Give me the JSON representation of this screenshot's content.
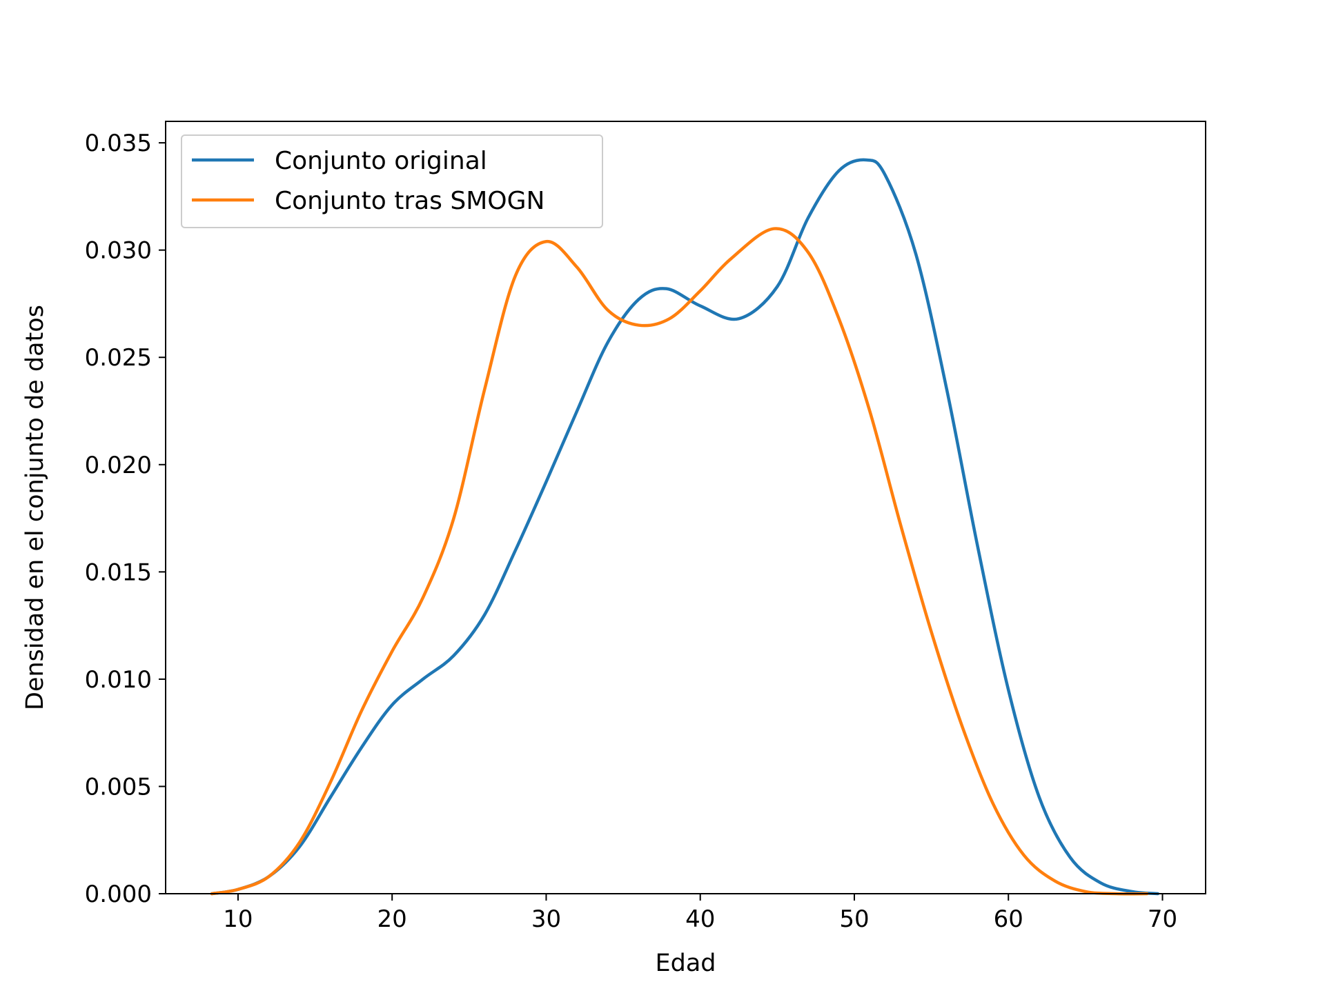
{
  "chart_data": {
    "type": "line",
    "title": "",
    "xlabel": "Edad",
    "ylabel": "Densidad en el conjunto de datos",
    "xlim": [
      5.3,
      72.8
    ],
    "ylim": [
      0,
      0.036
    ],
    "xticks": [
      10,
      20,
      30,
      40,
      50,
      60,
      70
    ],
    "xtick_labels": [
      "10",
      "20",
      "30",
      "40",
      "50",
      "60",
      "70"
    ],
    "yticks": [
      0,
      0.005,
      0.01,
      0.015,
      0.02,
      0.025,
      0.03,
      0.035
    ],
    "ytick_labels": [
      "0.000",
      "0.005",
      "0.010",
      "0.015",
      "0.020",
      "0.025",
      "0.030",
      "0.035"
    ],
    "grid": false,
    "legend_position": "top-left",
    "series": [
      {
        "name": "Conjunto original",
        "color": "#1f77b4",
        "x": [
          8.3,
          10,
          12,
          14,
          16,
          18,
          20,
          22,
          24,
          26,
          28,
          30,
          32,
          34,
          36,
          37.8,
          40,
          42.5,
          45,
          47,
          49,
          50.8,
          52,
          54,
          56,
          58,
          60,
          62,
          64,
          66,
          68,
          69.7
        ],
        "y": [
          0.0,
          0.0002,
          0.0008,
          0.0022,
          0.0045,
          0.0068,
          0.0088,
          0.01,
          0.0111,
          0.013,
          0.016,
          0.0192,
          0.0225,
          0.0257,
          0.0277,
          0.0282,
          0.0274,
          0.0268,
          0.0283,
          0.0315,
          0.0337,
          0.0342,
          0.0335,
          0.0298,
          0.0235,
          0.0162,
          0.0095,
          0.0045,
          0.0017,
          0.0005,
          0.0001,
          0.0
        ]
      },
      {
        "name": "Conjunto tras SMOGN",
        "color": "#ff7f0e",
        "x": [
          8.3,
          10,
          12,
          14,
          16,
          18,
          20,
          22,
          24,
          26,
          28,
          30,
          32,
          34,
          36,
          38,
          40,
          42,
          44.8,
          47,
          49,
          51,
          53,
          55,
          57,
          59,
          61,
          63,
          65,
          67,
          69
        ],
        "y": [
          0.0,
          0.0002,
          0.0008,
          0.0024,
          0.0052,
          0.0085,
          0.0113,
          0.0138,
          0.0175,
          0.0235,
          0.0288,
          0.0304,
          0.0292,
          0.0272,
          0.0265,
          0.0268,
          0.0281,
          0.0296,
          0.031,
          0.0299,
          0.0268,
          0.0225,
          0.0172,
          0.0122,
          0.0078,
          0.0042,
          0.0018,
          0.0006,
          0.0001,
          0.0,
          0.0
        ]
      }
    ]
  }
}
